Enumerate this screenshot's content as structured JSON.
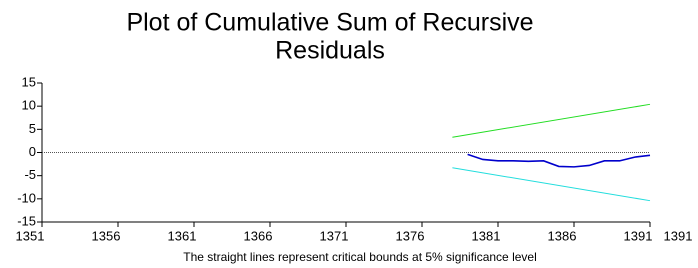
{
  "chart_data": {
    "type": "line",
    "title_lines": [
      "Plot of Cumulative Sum of Recursive",
      "Residuals"
    ],
    "x_label": "The straight lines represent critical bounds at 5% significance level",
    "extra_x_label": "1391",
    "xlim": [
      1351,
      1391
    ],
    "xticks": [
      1351,
      1356,
      1361,
      1366,
      1371,
      1376,
      1381,
      1386,
      1391
    ],
    "ylim": [
      -15,
      15
    ],
    "yticks": [
      15,
      10,
      5,
      0,
      -5,
      -10,
      -15
    ],
    "zero_line": true,
    "grid": false,
    "series": [
      {
        "color": "#0000cc",
        "x": [
          1379,
          1380,
          1381,
          1382,
          1383,
          1384,
          1385,
          1386,
          1387,
          1388,
          1389,
          1390,
          1391
        ],
        "values": [
          -0.4,
          -1.5,
          -1.8,
          -1.8,
          -1.9,
          -1.8,
          -3.0,
          -3.1,
          -2.8,
          -1.8,
          -1.8,
          -1.0,
          -0.6
        ]
      },
      {
        "color": "#22dd22",
        "x": [
          1378,
          1391
        ],
        "values": [
          3.3,
          10.4
        ]
      },
      {
        "color": "#22dddd",
        "x": [
          1378,
          1391
        ],
        "values": [
          -3.3,
          -10.4
        ]
      }
    ]
  }
}
